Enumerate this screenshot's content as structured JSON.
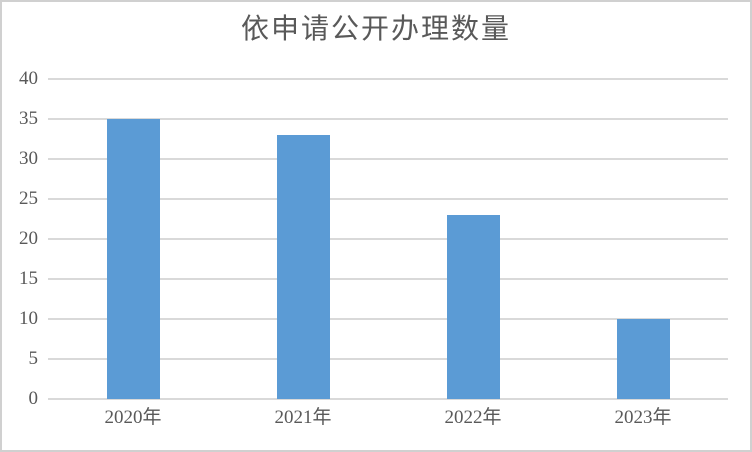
{
  "frame": {
    "background": "#ffffff",
    "border_color": "#d0d0d0"
  },
  "chart_data": {
    "type": "bar",
    "title": "依申请公开办理数量",
    "categories": [
      "2020年",
      "2021年",
      "2022年",
      "2023年"
    ],
    "values": [
      35,
      33,
      23,
      10
    ],
    "xlabel": "",
    "ylabel": "",
    "ylim": [
      0,
      40
    ],
    "yticks": [
      0,
      5,
      10,
      15,
      20,
      25,
      30,
      35,
      40
    ],
    "grid": "horizontal",
    "legend_position": "none",
    "bar_color": "#5b9bd5",
    "gridline_color": "#d9d9d9",
    "axis_text_color": "#595959",
    "title_color": "#595959"
  }
}
